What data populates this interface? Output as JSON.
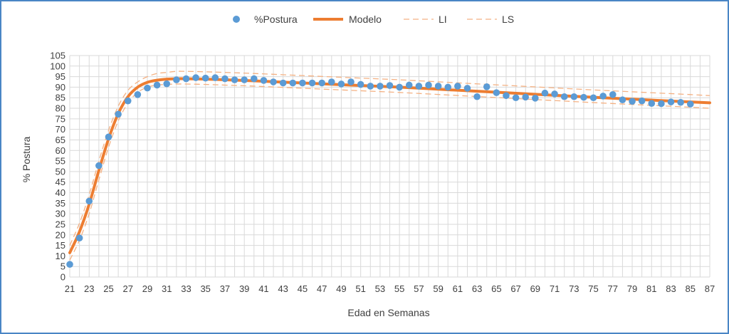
{
  "chart_data": {
    "type": "scatter",
    "xlabel": "Edad en Semanas",
    "ylabel": "% Postura",
    "xlim": [
      21,
      87
    ],
    "ylim": [
      0,
      105
    ],
    "x_ticks": [
      21,
      23,
      25,
      27,
      29,
      31,
      33,
      35,
      37,
      39,
      41,
      43,
      45,
      47,
      49,
      51,
      53,
      55,
      57,
      59,
      61,
      63,
      65,
      67,
      69,
      71,
      73,
      75,
      77,
      79,
      81,
      83,
      85,
      87
    ],
    "y_ticks": [
      0,
      5,
      10,
      15,
      20,
      25,
      30,
      35,
      40,
      45,
      50,
      55,
      60,
      65,
      70,
      75,
      80,
      85,
      90,
      95,
      100,
      105
    ],
    "grid": true,
    "legend_position": "top",
    "colors": {
      "points": "#5b9bd5",
      "model": "#ed7d31",
      "bands": "#f4b183",
      "grid": "#d9d9d9",
      "frame": "#4a86c5"
    },
    "series": [
      {
        "name": "%Postura",
        "kind": "points",
        "x": [
          21,
          22,
          23,
          24,
          25,
          26,
          27,
          28,
          29,
          30,
          31,
          32,
          33,
          34,
          35,
          36,
          37,
          38,
          39,
          40,
          41,
          42,
          43,
          44,
          45,
          46,
          47,
          48,
          49,
          50,
          51,
          52,
          53,
          54,
          55,
          56,
          57,
          58,
          59,
          60,
          61,
          62,
          63,
          64,
          65,
          66,
          67,
          68,
          69,
          70,
          71,
          72,
          73,
          74,
          75,
          76,
          77,
          78,
          79,
          80,
          81,
          82,
          83,
          84,
          85
        ],
        "y": [
          6,
          18.5,
          36,
          52.8,
          66.4,
          77.2,
          83.5,
          86.5,
          89.6,
          91,
          91.6,
          93.5,
          94,
          94.5,
          94.3,
          94.5,
          94,
          93.5,
          93.5,
          94,
          93.2,
          92.5,
          92,
          92,
          92,
          92,
          92,
          92.5,
          91.5,
          92.5,
          91.3,
          90.5,
          90.5,
          90.8,
          90,
          91,
          90.5,
          91,
          90.5,
          90,
          90.5,
          89.5,
          85.5,
          90.2,
          87.4,
          86,
          85,
          85.3,
          84.8,
          87.2,
          86.8,
          85.5,
          85.5,
          85.2,
          85,
          85.8,
          86.5,
          84,
          83.3,
          83.5,
          82.3,
          82.2,
          83,
          82.8,
          82
        ]
      },
      {
        "name": "Modelo",
        "kind": "line",
        "x": [
          21,
          22,
          23,
          24,
          25,
          26,
          27,
          28,
          29,
          30,
          31,
          32,
          33,
          35,
          37,
          40,
          45,
          50,
          55,
          60,
          65,
          70,
          75,
          80,
          85,
          87
        ],
        "y": [
          11.5,
          21.5,
          34.5,
          50.5,
          65.5,
          77.5,
          85.5,
          90,
          92.3,
          93.3,
          93.8,
          94,
          94,
          93.8,
          93.5,
          93,
          92,
          91,
          90,
          88.8,
          87.6,
          86.4,
          85.2,
          84.1,
          83,
          82.6
        ]
      },
      {
        "name": "LI",
        "kind": "dashed",
        "x": [
          21,
          22,
          23,
          24,
          25,
          26,
          27,
          28,
          29,
          30,
          31,
          32,
          33,
          35,
          37,
          40,
          45,
          50,
          55,
          60,
          65,
          70,
          75,
          80,
          85,
          87
        ],
        "y": [
          8,
          17.5,
          30,
          46,
          61.5,
          74,
          82.5,
          87.5,
          90,
          91,
          91.3,
          91.5,
          91.5,
          91.3,
          91,
          90.5,
          89.5,
          88.5,
          87.5,
          86.3,
          85.1,
          83.9,
          82.7,
          81.6,
          80.5,
          80
        ]
      },
      {
        "name": "LS",
        "kind": "dashed",
        "x": [
          21,
          22,
          23,
          24,
          25,
          26,
          27,
          28,
          29,
          30,
          31,
          32,
          33,
          35,
          37,
          40,
          45,
          50,
          55,
          60,
          65,
          70,
          75,
          80,
          85,
          87
        ],
        "y": [
          15,
          25.5,
          39,
          55,
          69.5,
          81,
          88.5,
          92.5,
          95,
          96.5,
          97,
          97.5,
          97.5,
          97.3,
          97,
          96.5,
          95.5,
          94.5,
          93.5,
          92.3,
          91.1,
          89.9,
          88.7,
          87.6,
          86.5,
          86
        ]
      }
    ]
  }
}
